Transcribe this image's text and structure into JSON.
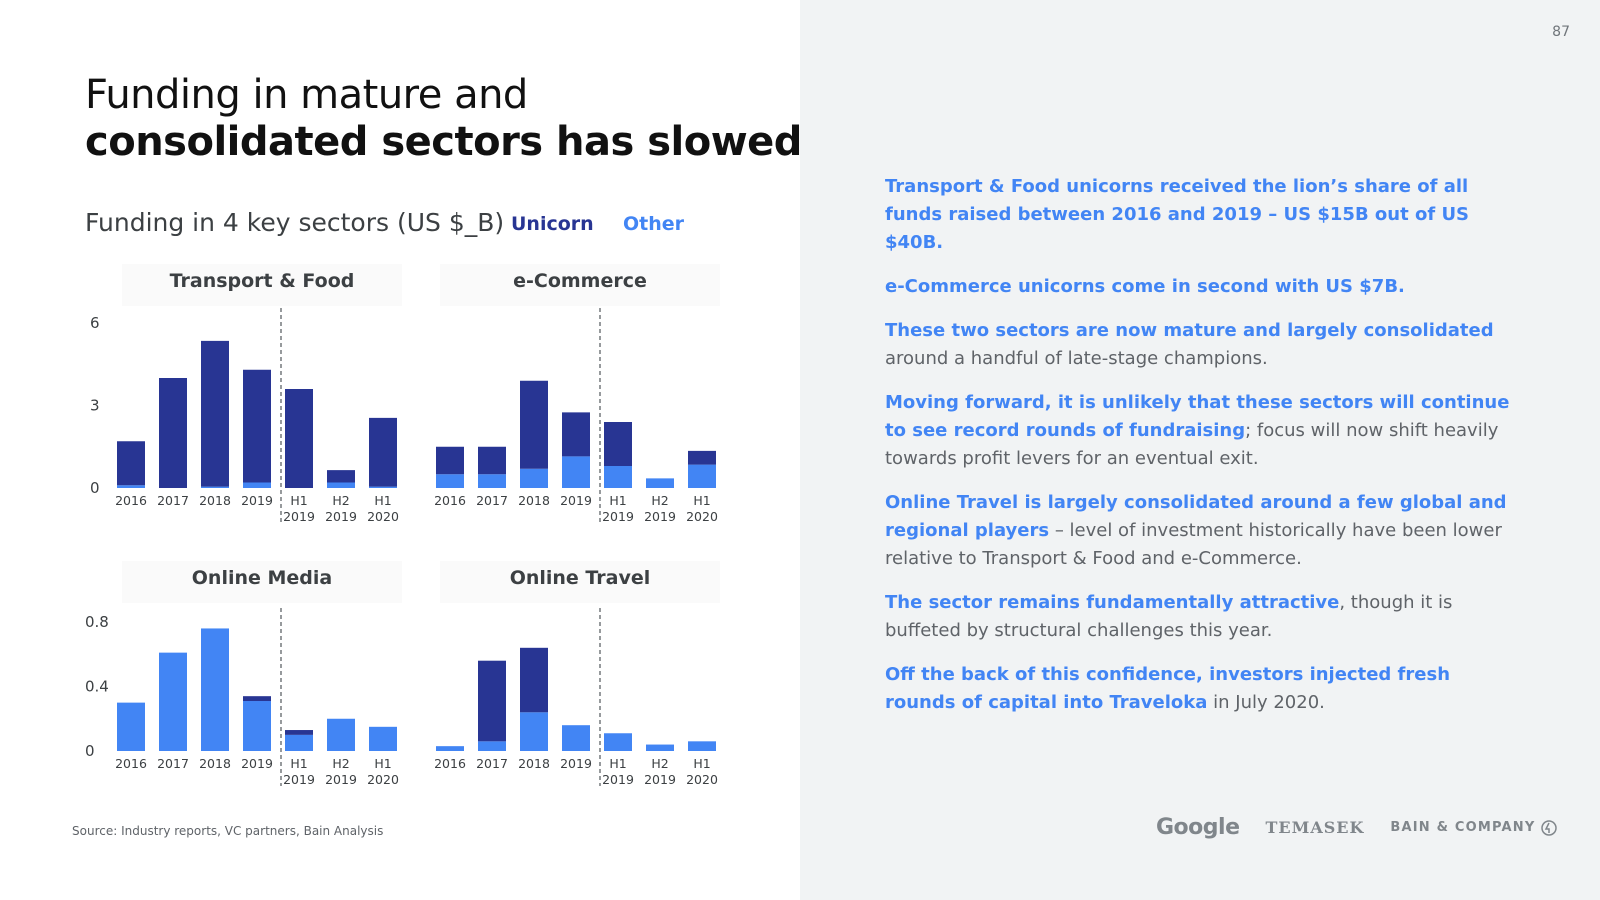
{
  "page_number": "87",
  "title_line1": "Funding in mature and",
  "title_line2": "consolidated sectors has slowed",
  "subtitle": "Funding in 4 key sectors (US $_B)",
  "legend": {
    "unicorn": "Unicorn",
    "other": "Other"
  },
  "colors": {
    "unicorn": "#283593",
    "other": "#4285f4",
    "highlight": "#4285f4"
  },
  "source": "Source: Industry reports, VC partners, Bain Analysis",
  "chart_data": [
    {
      "type": "bar",
      "stacked": true,
      "title": "Transport & Food",
      "categories": [
        "2016",
        "2017",
        "2018",
        "2019",
        "H1 2019",
        "H2 2019",
        "H1 2020"
      ],
      "series": [
        {
          "name": "Other",
          "values": [
            0.1,
            0.0,
            0.05,
            0.2,
            0.0,
            0.2,
            0.05
          ]
        },
        {
          "name": "Unicorn",
          "values": [
            1.6,
            4.0,
            5.3,
            4.1,
            3.6,
            0.45,
            2.5
          ]
        }
      ],
      "ylim": [
        0,
        6
      ],
      "yticks": [
        "0",
        "3",
        "6"
      ],
      "divider_after": "2019"
    },
    {
      "type": "bar",
      "stacked": true,
      "title": "e-Commerce",
      "categories": [
        "2016",
        "2017",
        "2018",
        "2019",
        "H1 2019",
        "H2 2019",
        "H1 2020"
      ],
      "series": [
        {
          "name": "Other",
          "values": [
            0.5,
            0.5,
            0.7,
            1.15,
            0.8,
            0.35,
            0.85
          ]
        },
        {
          "name": "Unicorn",
          "values": [
            1.0,
            1.0,
            3.2,
            1.6,
            1.6,
            0.0,
            0.5
          ]
        }
      ],
      "ylim": [
        0,
        6
      ],
      "divider_after": "2019"
    },
    {
      "type": "bar",
      "stacked": true,
      "title": "Online Media",
      "categories": [
        "2016",
        "2017",
        "2018",
        "2019",
        "H1 2019",
        "H2 2019",
        "H1 2020"
      ],
      "series": [
        {
          "name": "Other",
          "values": [
            0.3,
            0.61,
            0.76,
            0.31,
            0.1,
            0.2,
            0.15
          ]
        },
        {
          "name": "Unicorn",
          "values": [
            0.0,
            0.0,
            0.0,
            0.03,
            0.03,
            0.0,
            0.0
          ]
        }
      ],
      "ylim": [
        0,
        0.8
      ],
      "yticks": [
        "0",
        "0.4",
        "0.8"
      ],
      "divider_after": "2019"
    },
    {
      "type": "bar",
      "stacked": true,
      "title": "Online Travel",
      "categories": [
        "2016",
        "2017",
        "2018",
        "2019",
        "H1 2019",
        "H2 2019",
        "H1 2020"
      ],
      "series": [
        {
          "name": "Other",
          "values": [
            0.03,
            0.06,
            0.24,
            0.16,
            0.11,
            0.04,
            0.06
          ]
        },
        {
          "name": "Unicorn",
          "values": [
            0.0,
            0.5,
            0.4,
            0.0,
            0.0,
            0.0,
            0.0
          ]
        }
      ],
      "ylim": [
        0,
        0.8
      ],
      "divider_after": "2019"
    }
  ],
  "paragraphs": [
    [
      {
        "text": "Transport & Food unicorns received the lion’s share of all funds raised between 2016 and 2019 – US $15B out of US $40B.",
        "em": true
      }
    ],
    [
      {
        "text": "e-Commerce unicorns come in second with US $7B.",
        "em": true
      }
    ],
    [
      {
        "text": "These two sectors are now mature and largely consolidated",
        "em": true
      },
      {
        "text": " around a handful of late-stage champions.",
        "em": false
      }
    ],
    [
      {
        "text": "Moving forward, it is unlikely that these sectors will continue to see record rounds of fundraising",
        "em": true
      },
      {
        "text": "; focus will now shift heavily towards profit levers for an eventual exit.",
        "em": false
      }
    ],
    [
      {
        "text": "Online Travel is largely consolidated around a few global and regional players",
        "em": true
      },
      {
        "text": " – level of investment historically have been lower relative to Transport & Food and e-Commerce.",
        "em": false
      }
    ],
    [
      {
        "text": "The sector remains fundamentally attractive",
        "em": true
      },
      {
        "text": ", though it is buffeted by structural challenges this year.",
        "em": false
      }
    ],
    [
      {
        "text": "Off the back of this confidence, investors injected fresh rounds of capital into Traveloka",
        "em": true
      },
      {
        "text": " in July 2020.",
        "em": false
      }
    ]
  ],
  "logos": {
    "google": "Google",
    "temasek": "TEMASEK",
    "bain": "BAIN & COMPANY"
  }
}
